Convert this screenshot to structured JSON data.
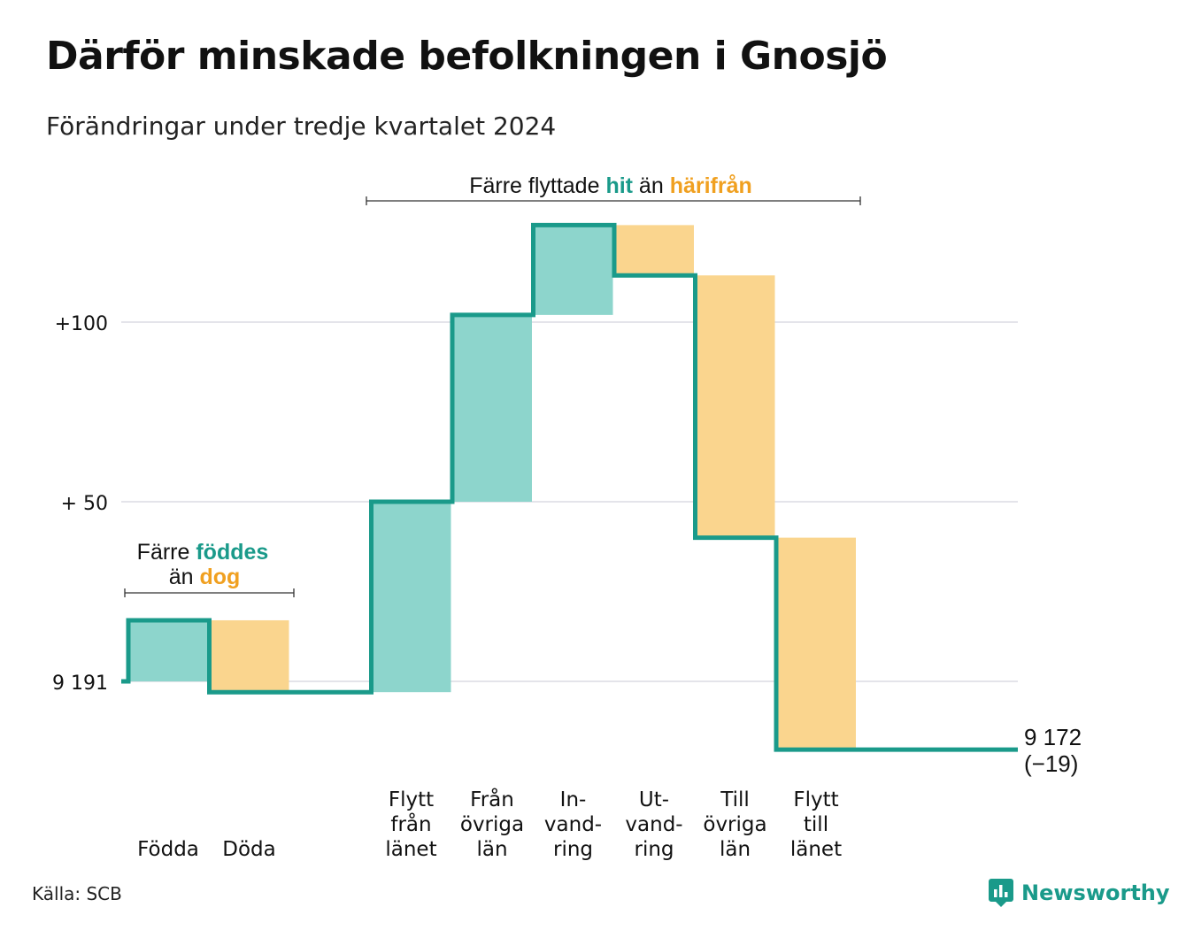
{
  "title": "Därför minskade befolkningen i Gnosjö",
  "subtitle": "Förändringar under tredje kvartalet 2024",
  "source": "Källa: SCB",
  "brand": {
    "name": "Newsworthy"
  },
  "colors": {
    "increase_fill": "#8dd5cc",
    "decrease_fill": "#fad58e",
    "line": "#1a9a8a",
    "gain_text": "#1a9a8a",
    "loss_text": "#f0a020",
    "grid": "#e4e4ea"
  },
  "annotations": {
    "births": {
      "line1_pre": "Färre ",
      "line1_hl": "föddes",
      "line2_pre": "än ",
      "line2_hl": "dog"
    },
    "migration": {
      "pre": "Färre flyttade ",
      "hl1": "hit",
      "mid": " än ",
      "hl2": "härifrån"
    }
  },
  "end_label": {
    "value": "9 172",
    "change": "(−19)"
  },
  "chart_data": {
    "type": "waterfall",
    "start_value": 9191,
    "y_tick_labels": [
      "9 191",
      "+ 50",
      "+100"
    ],
    "y_ticks": [
      0,
      50,
      100
    ],
    "ylim": [
      -27,
      131
    ],
    "grid": true,
    "steps": [
      {
        "label": [
          "Födda"
        ],
        "delta": 17,
        "kind": "increase"
      },
      {
        "label": [
          "Döda"
        ],
        "delta": -20,
        "kind": "decrease"
      },
      {
        "label": [],
        "delta": 0,
        "kind": "none"
      },
      {
        "label": [
          "Flytt",
          "från",
          "länet"
        ],
        "delta": 53,
        "kind": "increase"
      },
      {
        "label": [
          "Från",
          "övriga",
          "län"
        ],
        "delta": 52,
        "kind": "increase"
      },
      {
        "label": [
          "In-",
          "vand-",
          "ring"
        ],
        "delta": 25,
        "kind": "increase"
      },
      {
        "label": [
          "Ut-",
          "vand-",
          "ring"
        ],
        "delta": -14,
        "kind": "decrease"
      },
      {
        "label": [
          "Till",
          "övriga",
          "län"
        ],
        "delta": -73,
        "kind": "decrease"
      },
      {
        "label": [
          "Flytt",
          "till",
          "länet"
        ],
        "delta": -59,
        "kind": "decrease"
      },
      {
        "label": [],
        "delta": 0,
        "kind": "none"
      }
    ],
    "end_value": 9172,
    "total_change": -19
  }
}
